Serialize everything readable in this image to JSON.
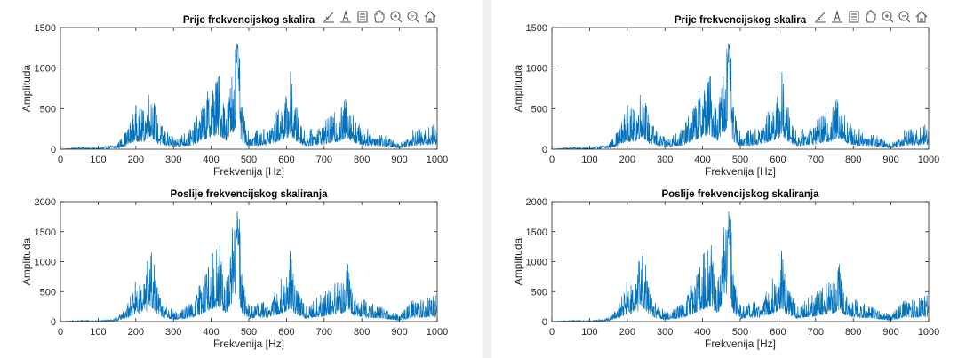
{
  "figures": [
    {
      "id": "left",
      "plots": [
        {
          "title": "Prije frekvencijskog skalira",
          "xlabel": "Frekvenija [Hz]",
          "ylabel": "Amplituda"
        },
        {
          "title": "Poslije frekvencijskog skaliranja",
          "xlabel": "Frekvenija [Hz]",
          "ylabel": "Amplituda"
        }
      ]
    },
    {
      "id": "right",
      "plots": [
        {
          "title": "Prije frekvencijskog skalira",
          "xlabel": "Frekvenija [Hz]",
          "ylabel": "Amplituda"
        },
        {
          "title": "Poslije frekvencijskog skaliranja",
          "xlabel": "Frekvenija [Hz]",
          "ylabel": "Amplituda"
        }
      ]
    }
  ],
  "toolbar": {
    "icons": [
      "brush-icon",
      "insert-data-icon",
      "legend-icon",
      "pan-icon",
      "zoom-in-icon",
      "zoom-out-icon",
      "home-icon"
    ]
  },
  "colors": {
    "line": "#0072BD",
    "axis": "#262626",
    "background": "#ffffff",
    "window": "#f0f0f0"
  },
  "chart_data": [
    {
      "type": "line",
      "title": "Prije frekvencijskog skalira",
      "xlabel": "Frekvenija [Hz]",
      "ylabel": "Amplituda",
      "xlim": [
        0,
        1000
      ],
      "ylim": [
        0,
        1500
      ],
      "xticks": [
        0,
        100,
        200,
        300,
        400,
        500,
        600,
        700,
        800,
        900,
        1000
      ],
      "yticks": [
        0,
        500,
        1000,
        1500
      ],
      "series": [
        {
          "x": [
            0,
            50,
            100,
            150,
            180,
            200,
            220,
            240,
            260,
            300,
            350,
            400,
            420,
            440,
            460,
            470,
            480,
            500,
            550,
            600,
            610,
            620,
            650,
            700,
            750,
            760,
            780,
            800,
            850,
            900,
            940,
            960,
            1000
          ],
          "y": [
            0,
            20,
            10,
            50,
            200,
            400,
            350,
            620,
            250,
            100,
            200,
            600,
            700,
            400,
            850,
            1380,
            400,
            150,
            200,
            500,
            730,
            450,
            150,
            250,
            400,
            560,
            300,
            200,
            150,
            50,
            200,
            170,
            240
          ]
        }
      ]
    },
    {
      "type": "line",
      "title": "Poslije frekvencijskog skaliranja",
      "xlabel": "Frekvenija [Hz]",
      "ylabel": "Amplituda",
      "xlim": [
        0,
        1000
      ],
      "ylim": [
        0,
        2000
      ],
      "xticks": [
        0,
        100,
        200,
        300,
        400,
        500,
        600,
        700,
        800,
        900,
        1000
      ],
      "yticks": [
        0,
        500,
        1000,
        1500,
        2000
      ],
      "series": [
        {
          "x": [
            0,
            50,
            100,
            150,
            180,
            200,
            220,
            240,
            260,
            300,
            350,
            400,
            420,
            440,
            460,
            470,
            480,
            500,
            550,
            600,
            610,
            620,
            650,
            700,
            750,
            760,
            780,
            800,
            850,
            900,
            940,
            960,
            1000
          ],
          "y": [
            0,
            20,
            10,
            50,
            250,
            500,
            450,
            980,
            350,
            120,
            250,
            800,
            1000,
            500,
            1300,
            2000,
            600,
            200,
            250,
            650,
            900,
            550,
            200,
            350,
            550,
            750,
            400,
            280,
            200,
            80,
            300,
            270,
            320
          ]
        }
      ]
    }
  ]
}
